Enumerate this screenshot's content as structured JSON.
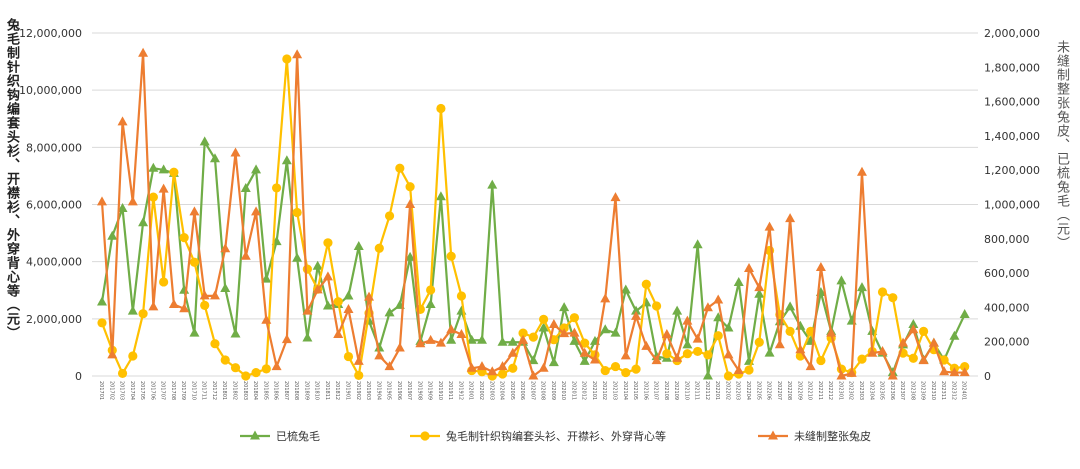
{
  "chart_data": {
    "type": "line",
    "title": "",
    "xlabel": "",
    "ylabel": "兔毛制针织钩编套头衫、开襟衫、外穿背心等（元）",
    "y2label": "未缝制整张兔皮、已梳兔毛（元）",
    "ylim": [
      0,
      12000000
    ],
    "y2lim": [
      0,
      2000000
    ],
    "yticks": [
      "0",
      "2,000,000",
      "4,000,000",
      "6,000,000",
      "8,000,000",
      "10,000,000",
      "12,000,000"
    ],
    "y2ticks": [
      "0",
      "200,000",
      "400,000",
      "600,000",
      "800,000",
      "1,000,000",
      "1,200,000",
      "1,400,000",
      "1,600,000",
      "1,800,000",
      "2,000,000"
    ],
    "grid": true,
    "legend": "bottom",
    "x_start": "201701",
    "x_count": 85,
    "series": [
      {
        "name": "已梳兔毛",
        "axis": "left",
        "marker": "triangle",
        "color": "#70ad47",
        "values": [
          2590000,
          4890000,
          5860000,
          2270000,
          5360000,
          7270000,
          7210000,
          7090000,
          3000000,
          1500000,
          8190000,
          7600000,
          3060000,
          1470000,
          6560000,
          7210000,
          3390000,
          4700000,
          7530000,
          4120000,
          1330000,
          3840000,
          2450000,
          2500000,
          2800000,
          4530000,
          1920000,
          980000,
          2210000,
          2470000,
          4150000,
          1210000,
          2500000,
          6270000,
          1250000,
          2270000,
          1250000,
          1250000,
          6680000,
          1180000,
          1180000,
          1180000,
          540000,
          1680000,
          470000,
          2390000,
          1210000,
          510000,
          1210000,
          1620000,
          1500000,
          3010000,
          2270000,
          2560000,
          680000,
          620000,
          2270000,
          1090000,
          4590000,
          0,
          2040000,
          1680000,
          3270000,
          510000,
          2860000,
          800000,
          1900000,
          2420000,
          1740000,
          1210000,
          2920000,
          1560000,
          3330000,
          1920000,
          3090000,
          1560000,
          800000,
          120000,
          1090000,
          1800000,
          560000,
          1150000,
          560000,
          1390000,
          2150000
        ]
      },
      {
        "name": "兔毛制针织钩编套头衫、开襟衫、外穿背心等",
        "axis": "left",
        "marker": "circle",
        "color": "#ffc000",
        "values": [
          1860000,
          900000,
          90000,
          700000,
          2180000,
          6260000,
          3290000,
          7130000,
          4840000,
          3980000,
          2470000,
          1130000,
          560000,
          290000,
          0,
          120000,
          250000,
          6580000,
          11090000,
          5720000,
          3740000,
          3040000,
          4660000,
          2600000,
          680000,
          20000,
          2200000,
          4470000,
          5600000,
          7270000,
          6620000,
          2330000,
          3010000,
          9360000,
          4190000,
          2800000,
          190000,
          150000,
          0,
          70000,
          270000,
          1500000,
          1360000,
          1980000,
          1270000,
          1680000,
          2040000,
          1150000,
          740000,
          190000,
          330000,
          120000,
          240000,
          3210000,
          2450000,
          780000,
          540000,
          780000,
          860000,
          740000,
          1410000,
          0,
          70000,
          210000,
          1180000,
          4390000,
          2150000,
          1560000,
          700000,
          1560000,
          540000,
          1330000,
          240000,
          120000,
          590000,
          860000,
          2940000,
          2740000,
          800000,
          620000,
          1560000,
          920000,
          560000,
          270000,
          330000
        ]
      },
      {
        "name": "未缝制整张兔皮",
        "axis": "right",
        "marker": "triangle",
        "color": "#ed7d31",
        "values": [
          1015000,
          123000,
          1482000,
          1015000,
          1882000,
          403000,
          1090000,
          417000,
          392000,
          957000,
          467000,
          467000,
          742000,
          1300000,
          698000,
          957000,
          325000,
          55000,
          212000,
          1873000,
          378000,
          502000,
          578000,
          242000,
          388000,
          85000,
          460000,
          117000,
          55000,
          163000,
          1000000,
          188000,
          208000,
          192000,
          270000,
          242000,
          45000,
          55000,
          25000,
          55000,
          133000,
          208000,
          0,
          45000,
          300000,
          247000,
          250000,
          133000,
          93000,
          450000,
          1040000,
          117000,
          348000,
          173000,
          90000,
          242000,
          103000,
          320000,
          215000,
          398000,
          443000,
          123000,
          32000,
          627000,
          515000,
          868000,
          182000,
          918000,
          153000,
          55000,
          633000,
          250000,
          0,
          15000,
          1188000,
          133000,
          143000,
          0,
          192000,
          270000,
          90000,
          192000,
          25000,
          20000,
          20000
        ]
      }
    ]
  }
}
